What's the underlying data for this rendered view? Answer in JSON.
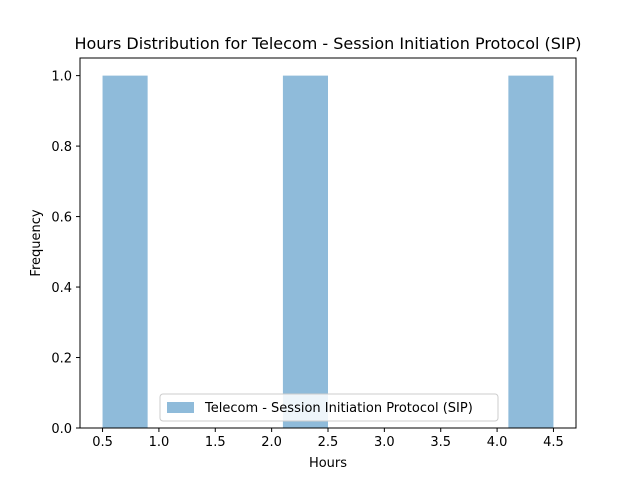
{
  "chart_data": {
    "type": "bar",
    "title": "Hours Distribution for Telecom - Session Initiation Protocol (SIP)",
    "xlabel": "Hours",
    "ylabel": "Frequency",
    "xlim": [
      0.3,
      4.7
    ],
    "ylim": [
      0,
      1.05
    ],
    "xticks": [
      "0.5",
      "1.0",
      "1.5",
      "2.0",
      "2.5",
      "3.0",
      "3.5",
      "4.0",
      "4.5"
    ],
    "yticks": [
      "0.0",
      "0.2",
      "0.4",
      "0.6",
      "0.8",
      "1.0"
    ],
    "grid": false,
    "legend_position": "lower center",
    "series": [
      {
        "name": "Telecom - Session Initiation Protocol (SIP)",
        "color": "#8fbbda",
        "bins": [
          {
            "x0": 0.5,
            "x1": 0.9,
            "value": 1
          },
          {
            "x0": 2.1,
            "x1": 2.5,
            "value": 1
          },
          {
            "x0": 4.1,
            "x1": 4.5,
            "value": 1
          }
        ]
      }
    ]
  }
}
